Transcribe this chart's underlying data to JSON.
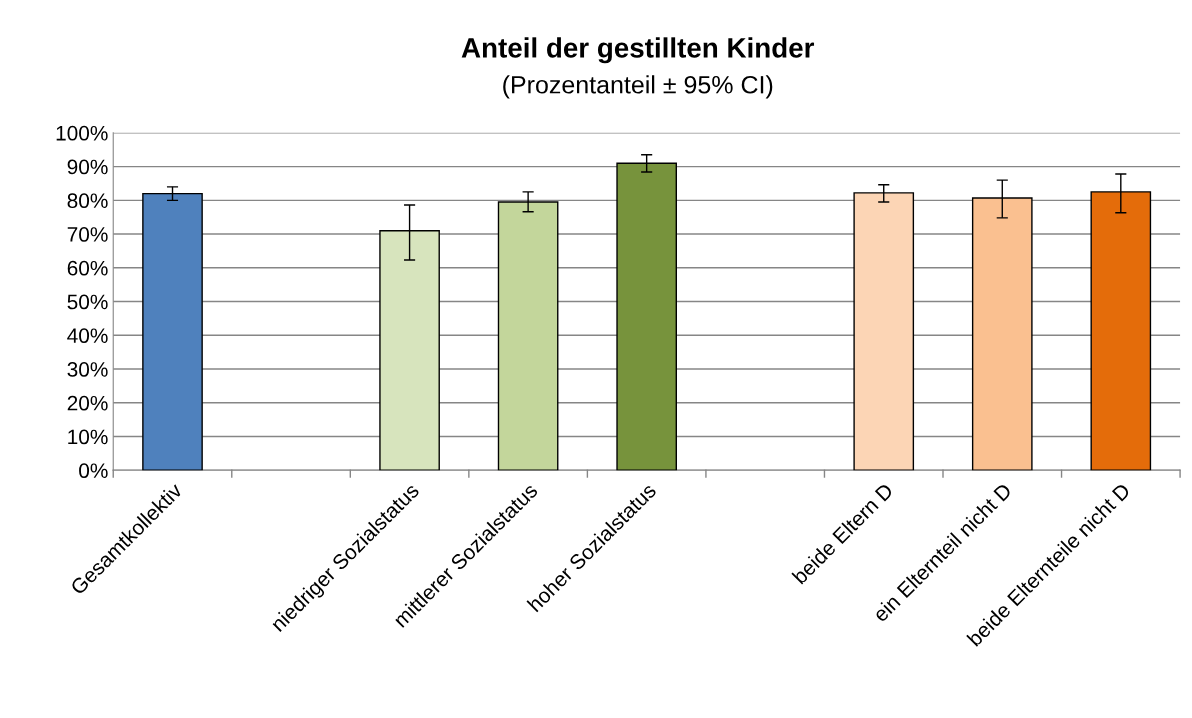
{
  "chart_data": {
    "type": "bar",
    "title": "Anteil der gestillten Kinder",
    "subtitle": "(Prozentanteil ± 95% CI)",
    "categories": [
      "Gesamtkollektiv",
      null,
      "niedriger Sozialstatus",
      "mittlerer Sozialstatus",
      "hoher Sozialstatus",
      null,
      "beide Eltern D",
      "ein Elternteil nicht D",
      "beide Elternteile nicht D"
    ],
    "values": [
      82,
      null,
      71,
      79.5,
      91,
      null,
      82.2,
      80.7,
      82.5
    ],
    "colors": [
      "#4f81bd",
      null,
      "#d7e4bd",
      "#c3d69b",
      "#77933c",
      null,
      "#fcd5b5",
      "#fac090",
      "#e46c0a"
    ],
    "errors": [
      [
        80,
        84
      ],
      null,
      [
        62.3,
        78.6
      ],
      [
        76.6,
        82.5
      ],
      [
        88.4,
        93.5
      ],
      null,
      [
        79.5,
        84.6
      ],
      [
        74.8,
        86
      ],
      [
        76.3,
        87.8
      ]
    ],
    "ylim": [
      0,
      100
    ],
    "yticks": [
      {
        "value": 0,
        "label": "0%"
      },
      {
        "value": 10,
        "label": "10%"
      },
      {
        "value": 20,
        "label": "20%"
      },
      {
        "value": 30,
        "label": "30%"
      },
      {
        "value": 40,
        "label": "40%"
      },
      {
        "value": 50,
        "label": "50%"
      },
      {
        "value": 60,
        "label": "60%"
      },
      {
        "value": 70,
        "label": "70%"
      },
      {
        "value": 80,
        "label": "80%"
      },
      {
        "value": 90,
        "label": "90%"
      },
      {
        "value": 100,
        "label": "100%"
      }
    ],
    "grid": "y"
  }
}
